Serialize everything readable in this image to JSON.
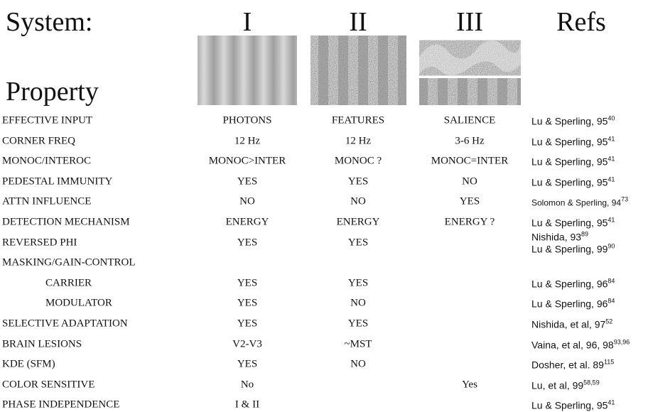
{
  "header": {
    "system": "System:",
    "property": "Property",
    "columns": [
      "I",
      "II",
      "III"
    ],
    "refs": "Refs"
  },
  "rows": [
    {
      "property": "EFFECTIVE INPUT",
      "values": [
        "PHOTONS",
        "FEATURES",
        "SALIENCE"
      ],
      "refs": [
        {
          "text": "Lu & Sperling, 95",
          "sup": "40"
        }
      ]
    },
    {
      "property": "CORNER FREQ",
      "values": [
        "12 Hz",
        "12 Hz",
        "3-6 Hz"
      ],
      "refs": [
        {
          "text": "Lu & Sperling, 95",
          "sup": "41"
        }
      ]
    },
    {
      "property": "MONOC/INTEROC",
      "values": [
        "MONOC>INTER",
        "MONOC ?",
        "MONOC=INTER"
      ],
      "refs": [
        {
          "text": "Lu & Sperling, 95",
          "sup": "41"
        }
      ]
    },
    {
      "property": "PEDESTAL IMMUNITY",
      "values": [
        "YES",
        "YES",
        "NO"
      ],
      "refs": [
        {
          "text": "Lu & Sperling, 95",
          "sup": "41"
        }
      ]
    },
    {
      "property": "ATTN INFLUENCE",
      "values": [
        "NO",
        "NO",
        "YES"
      ],
      "refs": [
        {
          "text": "Solomon & Sperling, 94",
          "sup": "73"
        }
      ]
    },
    {
      "property": "DETECTION MECHANISM",
      "values": [
        "ENERGY",
        "ENERGY",
        "ENERGY ?"
      ],
      "refs": [
        {
          "text": "Lu & Sperling, 95",
          "sup": "41"
        }
      ]
    },
    {
      "property": "REVERSED PHI",
      "values": [
        "YES",
        "YES",
        null
      ],
      "refs": [
        {
          "text": "Nishida, 93",
          "sup": "89"
        },
        {
          "text": "Lu & Sperling, 99",
          "sup": "90"
        }
      ]
    },
    {
      "property": "MASKING/GAIN-CONTROL",
      "values": [
        null,
        null,
        null
      ],
      "refs": []
    },
    {
      "property": "CARRIER",
      "indent": true,
      "values": [
        "YES",
        "YES",
        null
      ],
      "refs": [
        {
          "text": "Lu & Sperling, 96",
          "sup": "84"
        }
      ]
    },
    {
      "property": "MODULATOR",
      "indent": true,
      "values": [
        "YES",
        "NO",
        null
      ],
      "refs": [
        {
          "text": "Lu & Sperling, 96",
          "sup": "84"
        }
      ]
    },
    {
      "property": "SELECTIVE ADAPTATION",
      "values": [
        "YES",
        "YES",
        null
      ],
      "refs": [
        {
          "text": "Nishida, et al, 97",
          "sup": "52"
        }
      ]
    },
    {
      "property": "BRAIN LESIONS",
      "values": [
        "V2-V3",
        "~MST",
        null
      ],
      "refs": [
        {
          "text": "Vaina, et al, 96, 98",
          "sup": "93,96"
        }
      ]
    },
    {
      "property": "KDE (SFM)",
      "values": [
        "YES",
        "NO",
        null
      ],
      "refs": [
        {
          "text": "Dosher, et al. 89",
          "sup": "115"
        }
      ]
    },
    {
      "property": "COLOR SENSITIVE",
      "values": [
        "No",
        null,
        "Yes"
      ],
      "refs": [
        {
          "text": "Lu, et al, 99",
          "sup": "58,59"
        }
      ]
    },
    {
      "property": "PHASE INDEPENDENCE",
      "values": [
        "I & II",
        null,
        null
      ],
      "refs": [
        {
          "text": "Lu & Sperling, 95",
          "sup": "41"
        }
      ]
    }
  ]
}
